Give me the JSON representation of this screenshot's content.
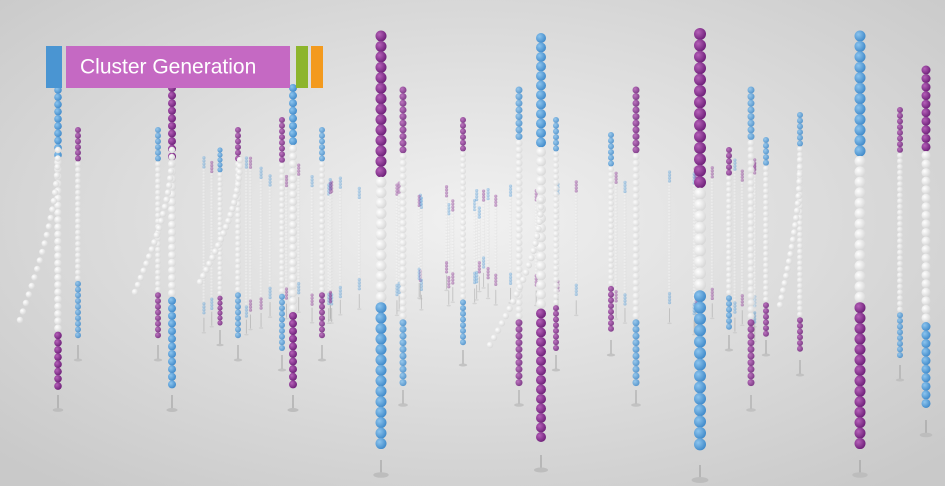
{
  "label": {
    "text": "Cluster Generation"
  }
}
